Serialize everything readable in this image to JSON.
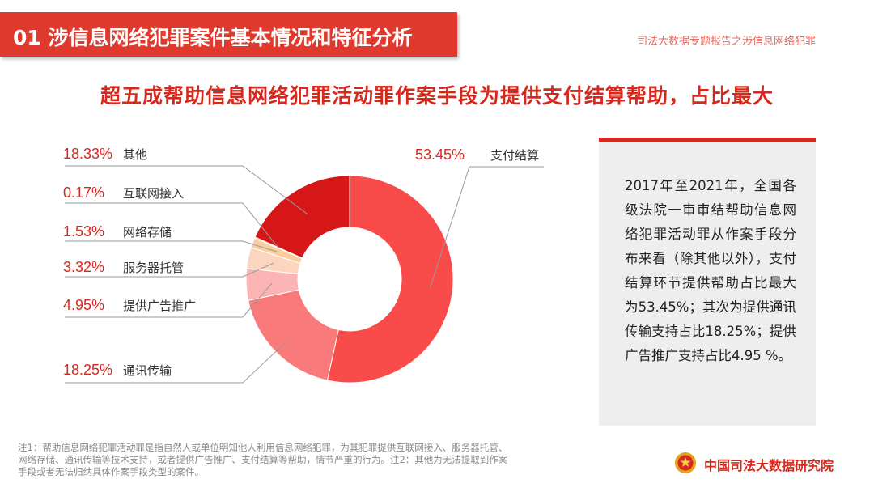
{
  "header": {
    "title": "01  涉信息网络犯罪案件基本情况和特征分析"
  },
  "report_label": "司法大数据专题报告之涉信息网络犯罪",
  "headline": "超五成帮助信息网络犯罪活动罪作案手段为提供支付结算帮助，占比最大",
  "chart_data": {
    "type": "pie",
    "title": "",
    "labels": [
      "支付结算",
      "通讯传输",
      "提供广告推广",
      "服务器托管",
      "网络存储",
      "互联网接入",
      "其他"
    ],
    "value_labels": [
      "53.45%",
      "18.25%",
      "4.95%",
      "3.32%",
      "1.53%",
      "0.17%",
      "18.33%"
    ],
    "values": [
      53.45,
      18.25,
      4.95,
      3.32,
      1.53,
      0.17,
      18.33
    ],
    "colors": [
      "#fa4b4b",
      "#f87a7a",
      "#fbb3b3",
      "#fcd5bf",
      "#f9cf9e",
      "#f2a9a9",
      "#d61717"
    ],
    "legend": "callouts"
  },
  "info": {
    "text": "2017年至2021年，全国各级法院一审审结帮助信息网络犯罪活动罪从作案手段分布来看（除其他以外），支付结算环节提供帮助占比最大为53.45%；其次为提供通讯传输支持占比18.25%；提供广告推广支持占比4.95 %。"
  },
  "footnote": "注1：帮助信息网络犯罪活动罪是指自然人或单位明知他人利用信息网络犯罪，为其犯罪提供互联网接入、服务器托管、网络存储、通讯传输等技术支持，或者提供广告推广、支付结算等帮助，情节严重的行为。注2：其他为无法提取到作案手段或者无法归纳具体作案手段类型的案件。",
  "brand": {
    "name": "中国司法大数据研究院",
    "emblem": "court-emblem-icon"
  }
}
